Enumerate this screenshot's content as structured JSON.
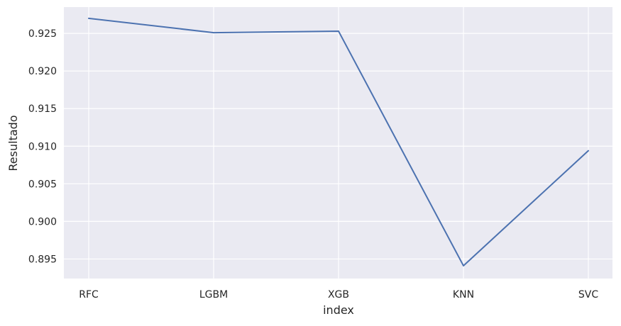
{
  "chart_data": {
    "type": "line",
    "title": "",
    "xlabel": "index",
    "ylabel": "Resultado",
    "categories": [
      "RFC",
      "LGBM",
      "XGB",
      "KNN",
      "SVC"
    ],
    "series": [
      {
        "values": [
          0.927,
          0.9251,
          0.9253,
          0.8941,
          0.9094
        ]
      }
    ],
    "ylim": [
      0.8924,
      0.9285
    ],
    "yticks": [
      0.895,
      0.9,
      0.905,
      0.91,
      0.915,
      0.92,
      0.925
    ],
    "ytick_labels": [
      "0.895",
      "0.900",
      "0.905",
      "0.910",
      "0.915",
      "0.920",
      "0.925"
    ],
    "grid": true,
    "colors": {
      "plot_background": "#eaeaf2",
      "grid": "#ffffff",
      "line": "#4c72b0"
    }
  }
}
